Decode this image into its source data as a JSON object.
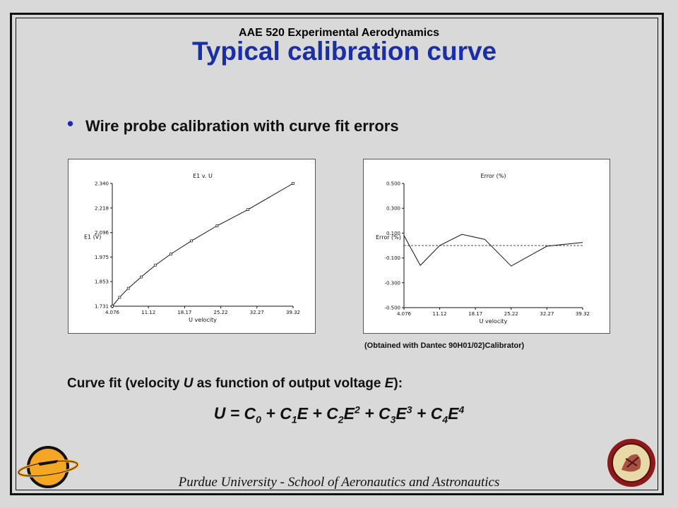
{
  "slide": {
    "course": "AAE 520 Experimental Aerodynamics",
    "title": "Typical calibration curve",
    "bullet": "Wire probe calibration with curve fit errors",
    "note": "(Obtained with Dantec 90H01/02)Calibrator)",
    "curvefit_label_parts": [
      "Curve fit (velocity ",
      "U",
      " as function of output voltage ",
      "E",
      "):"
    ],
    "equation": {
      "lhs": "U",
      "terms": [
        {
          "coef": "C",
          "sub": "0",
          "var": "",
          "sup": ""
        },
        {
          "coef": "C",
          "sub": "1",
          "var": "E",
          "sup": ""
        },
        {
          "coef": "C",
          "sub": "2",
          "var": "E",
          "sup": "2"
        },
        {
          "coef": "C",
          "sub": "3",
          "var": "E",
          "sup": "3"
        },
        {
          "coef": "C",
          "sub": "4",
          "var": "E",
          "sup": "4"
        }
      ]
    },
    "footer": "Purdue University - School of Aeronautics and Astronautics",
    "colors": {
      "title": "#1a2ea8",
      "background": "#d9d9d9",
      "logo_left": "#f5a623",
      "logo_right": "#8b1a1a"
    }
  },
  "chart_data": [
    {
      "type": "line",
      "title": "E1 v. U",
      "xlabel": "U velocity",
      "ylabel": "E1 (V)",
      "x_ticks": [
        "4.076",
        "11.12",
        "18.17",
        "25.22",
        "32.27",
        "39.32"
      ],
      "y_ticks": [
        "1.731",
        "1.853",
        "1.975",
        "2.096",
        "2.218",
        "2.340"
      ],
      "xlim": [
        4.076,
        39.32
      ],
      "ylim": [
        1.731,
        2.34
      ],
      "x": [
        4.076,
        5.5,
        7.2,
        9.7,
        12.5,
        15.5,
        19.5,
        24.5,
        30.5,
        39.32
      ],
      "y": [
        1.731,
        1.775,
        1.82,
        1.876,
        1.935,
        1.99,
        2.055,
        2.13,
        2.21,
        2.34
      ],
      "markers": true
    },
    {
      "type": "line",
      "title": "Error (%)",
      "xlabel": "U velocity",
      "ylabel": "Error (%)",
      "x_ticks": [
        "4.076",
        "11.12",
        "18.17",
        "25.22",
        "32.27",
        "39.32"
      ],
      "y_ticks": [
        "0.500",
        "0.300",
        "0.100",
        "-0.100",
        "-0.300",
        "-0.500"
      ],
      "xlim": [
        4.076,
        39.32
      ],
      "ylim": [
        -0.5,
        0.5
      ],
      "x": [
        4.076,
        7.3,
        11.12,
        15.5,
        20.0,
        25.22,
        32.27,
        39.32
      ],
      "y": [
        0.08,
        -0.16,
        0.0,
        0.09,
        0.05,
        -0.165,
        -0.005,
        0.025
      ],
      "reference_line": 0
    }
  ]
}
